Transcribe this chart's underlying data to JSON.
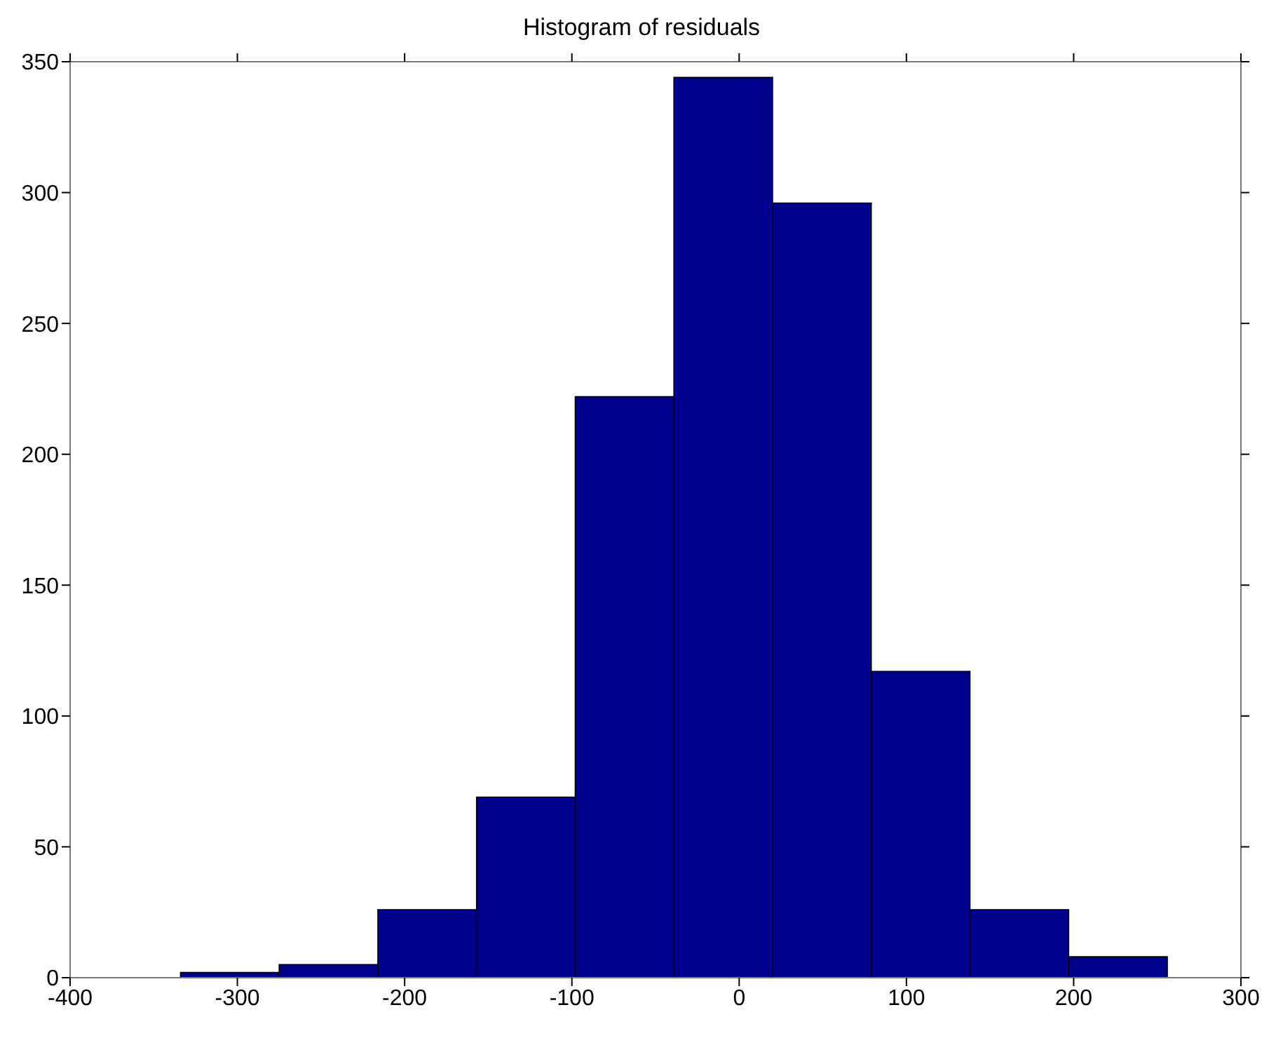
{
  "chart_data": {
    "type": "histogram",
    "title": "Histogram of residuals",
    "bins": [
      -334,
      -275,
      -216,
      -157,
      -98,
      -39,
      20,
      79,
      138,
      197,
      256
    ],
    "values": [
      2,
      5,
      26,
      69,
      222,
      344,
      296,
      117,
      26,
      8
    ],
    "color": "#00008f",
    "xlim": [
      -400,
      300
    ],
    "xticks": [
      -400,
      -300,
      -200,
      -100,
      0,
      100,
      200,
      300
    ],
    "ylim": [
      0,
      350
    ],
    "yticks": [
      0,
      50,
      100,
      150,
      200,
      250,
      300,
      350
    ],
    "grid": false
  }
}
